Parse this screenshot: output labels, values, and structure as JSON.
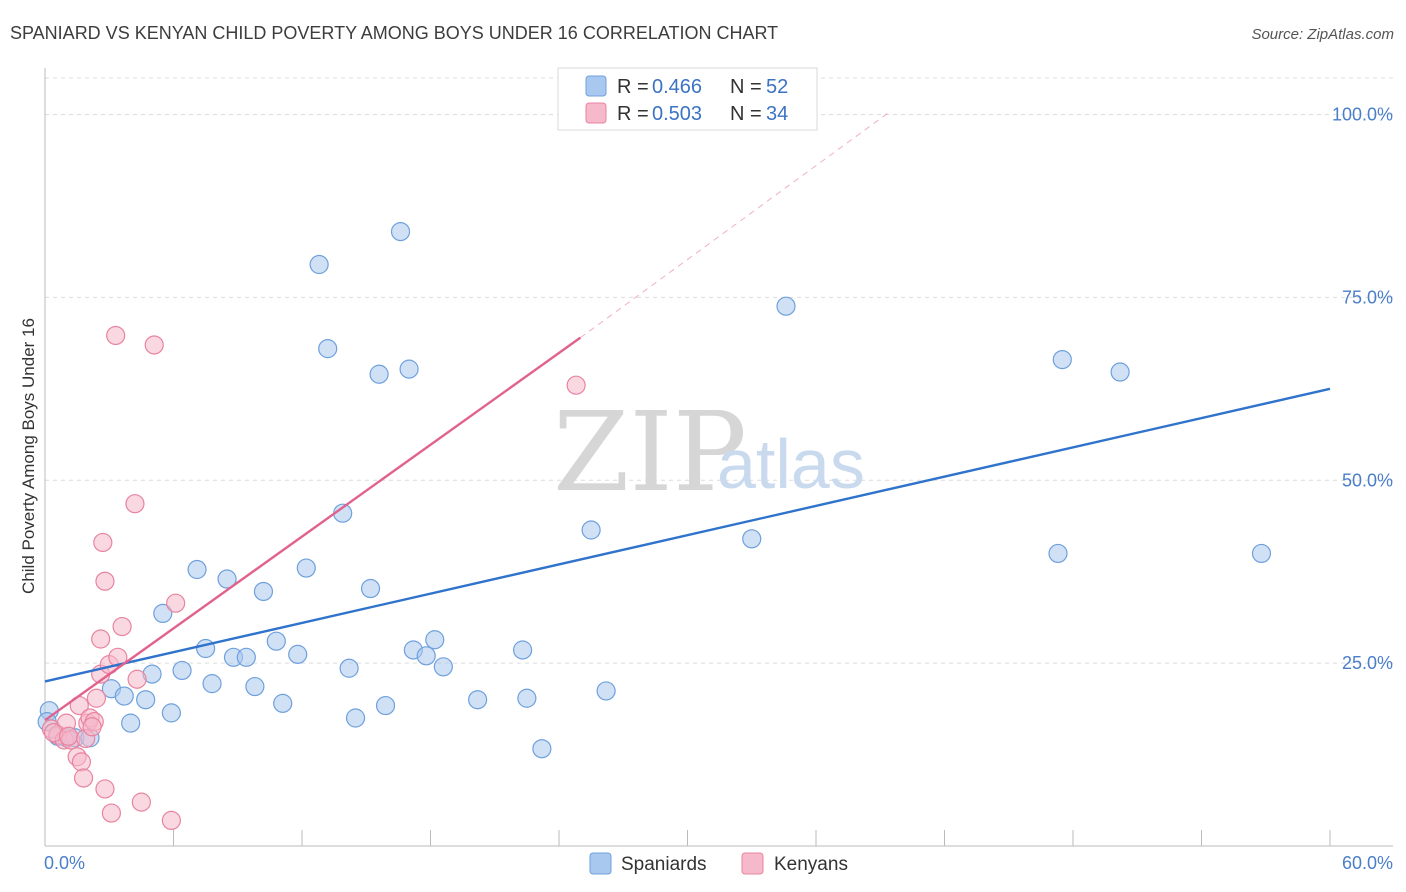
{
  "chart_data": {
    "type": "scatter",
    "title": "SPANIARD VS KENYAN CHILD POVERTY AMONG BOYS UNDER 16 CORRELATION CHART",
    "source": "Source: ZipAtlas.com",
    "ylabel": "Child Poverty Among Boys Under 16",
    "xlabel": "",
    "xlim": [
      0,
      60
    ],
    "ylim": [
      0,
      105
    ],
    "x_tick_labels": [
      "0.0%",
      "60.0%"
    ],
    "y_ticks": [
      25,
      50,
      75,
      100
    ],
    "y_tick_labels": [
      "25.0%",
      "50.0%",
      "75.0%",
      "100.0%"
    ],
    "watermark": {
      "zip": "ZIP",
      "atlas": "atlas"
    },
    "legend": {
      "r_label": "R =",
      "n_label": "N =",
      "entries": [
        {
          "r": "0.466",
          "n": "52",
          "color": "#a9c8ef"
        },
        {
          "r": "0.503",
          "n": "34",
          "color": "#f6b8cb"
        }
      ]
    },
    "series": [
      {
        "name": "Spaniards",
        "color": "#a9c8ef",
        "stroke": "#6fa0dc",
        "trend_color": "#2f73cc",
        "trend": {
          "x0": 0,
          "y0": 22.5,
          "x1": 60,
          "y1": 62.5,
          "dash_to": null
        },
        "points": [
          [
            0.2,
            18.5
          ],
          [
            0.6,
            15.0
          ],
          [
            1.0,
            14.8
          ],
          [
            1.4,
            14.8
          ],
          [
            2.1,
            14.8
          ],
          [
            4.0,
            16.8
          ],
          [
            3.1,
            21.5
          ],
          [
            3.7,
            20.5
          ],
          [
            4.7,
            20.0
          ],
          [
            5.0,
            23.5
          ],
          [
            5.5,
            31.8
          ],
          [
            5.9,
            18.2
          ],
          [
            6.4,
            24.0
          ],
          [
            7.1,
            37.8
          ],
          [
            7.5,
            27.0
          ],
          [
            7.8,
            22.2
          ],
          [
            8.5,
            36.5
          ],
          [
            8.8,
            25.8
          ],
          [
            9.4,
            25.8
          ],
          [
            9.8,
            21.8
          ],
          [
            10.2,
            34.8
          ],
          [
            10.8,
            28.0
          ],
          [
            11.1,
            19.5
          ],
          [
            11.8,
            26.2
          ],
          [
            12.2,
            38.0
          ],
          [
            12.8,
            79.5
          ],
          [
            13.2,
            68.0
          ],
          [
            13.9,
            45.5
          ],
          [
            14.2,
            24.3
          ],
          [
            14.5,
            17.5
          ],
          [
            15.2,
            35.2
          ],
          [
            15.6,
            64.5
          ],
          [
            15.9,
            19.2
          ],
          [
            16.6,
            84.0
          ],
          [
            17.0,
            65.2
          ],
          [
            17.2,
            26.8
          ],
          [
            17.8,
            26.0
          ],
          [
            18.2,
            28.2
          ],
          [
            18.6,
            24.5
          ],
          [
            20.2,
            20.0
          ],
          [
            22.3,
            26.8
          ],
          [
            22.5,
            20.2
          ],
          [
            23.2,
            13.3
          ],
          [
            25.5,
            43.2
          ],
          [
            26.2,
            21.2
          ],
          [
            33.0,
            42.0
          ],
          [
            34.6,
            73.8
          ],
          [
            47.3,
            40.0
          ],
          [
            47.5,
            66.5
          ],
          [
            50.2,
            64.8
          ],
          [
            56.8,
            40.0
          ],
          [
            0.1,
            17.0
          ]
        ]
      },
      {
        "name": "Kenyans",
        "color": "#f6b8cb",
        "stroke": "#e8849f",
        "trend_color": "#e0628d",
        "trend": {
          "x0": 0,
          "y0": 17.2,
          "x1": 25.0,
          "y1": 69.5,
          "dash_to": [
            39.5,
            100.5
          ]
        },
        "points": [
          [
            0.3,
            16.0
          ],
          [
            0.6,
            15.2
          ],
          [
            0.9,
            14.5
          ],
          [
            1.0,
            16.8
          ],
          [
            1.2,
            14.5
          ],
          [
            1.5,
            12.2
          ],
          [
            1.6,
            19.2
          ],
          [
            1.7,
            11.5
          ],
          [
            1.8,
            9.3
          ],
          [
            2.0,
            16.8
          ],
          [
            2.1,
            17.5
          ],
          [
            2.3,
            17.0
          ],
          [
            2.4,
            20.2
          ],
          [
            2.6,
            23.5
          ],
          [
            2.6,
            28.3
          ],
          [
            2.7,
            41.5
          ],
          [
            2.8,
            36.2
          ],
          [
            2.8,
            7.8
          ],
          [
            3.0,
            24.8
          ],
          [
            3.3,
            69.8
          ],
          [
            3.1,
            4.5
          ],
          [
            3.4,
            25.8
          ],
          [
            3.6,
            30.0
          ],
          [
            4.2,
            46.8
          ],
          [
            4.3,
            22.8
          ],
          [
            4.5,
            6.0
          ],
          [
            5.1,
            68.5
          ],
          [
            5.9,
            3.5
          ],
          [
            6.1,
            33.2
          ],
          [
            24.8,
            63.0
          ],
          [
            0.4,
            15.5
          ],
          [
            1.1,
            15.0
          ],
          [
            1.9,
            14.7
          ],
          [
            2.2,
            16.3
          ]
        ]
      }
    ]
  },
  "bottom_legend": {
    "spaniards_label": "Spaniards",
    "kenyans_label": "Kenyans"
  }
}
